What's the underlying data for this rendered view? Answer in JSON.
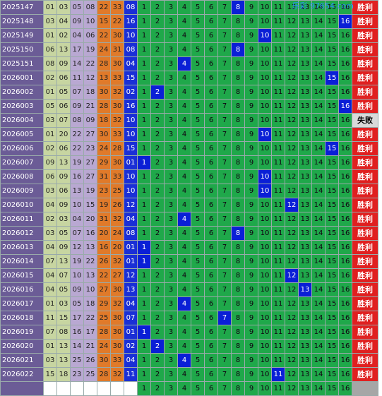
{
  "watermark": "乐彩 97654.com",
  "rows": [
    {
      "period": "2025147",
      "nums": [
        "01",
        "03",
        "05",
        "08",
        "22",
        "33"
      ],
      "blue": "08",
      "hit": 8,
      "res": "胜利"
    },
    {
      "period": "2025148",
      "nums": [
        "03",
        "04",
        "09",
        "10",
        "15",
        "22"
      ],
      "blue": "16",
      "hit": 16,
      "res": "胜利"
    },
    {
      "period": "2025149",
      "nums": [
        "01",
        "02",
        "04",
        "06",
        "22",
        "30"
      ],
      "blue": "10",
      "hit": 10,
      "res": "胜利"
    },
    {
      "period": "2025150",
      "nums": [
        "06",
        "13",
        "17",
        "19",
        "24",
        "31"
      ],
      "blue": "08",
      "hit": 8,
      "res": "胜利"
    },
    {
      "period": "2025151",
      "nums": [
        "08",
        "09",
        "14",
        "22",
        "28",
        "30"
      ],
      "blue": "04",
      "hit": 4,
      "res": "胜利"
    },
    {
      "period": "2026001",
      "nums": [
        "02",
        "06",
        "11",
        "12",
        "13",
        "33"
      ],
      "blue": "15",
      "hit": 15,
      "res": "胜利"
    },
    {
      "period": "2026002",
      "nums": [
        "01",
        "05",
        "07",
        "18",
        "30",
        "32"
      ],
      "blue": "02",
      "hit": 2,
      "res": "胜利"
    },
    {
      "period": "2026003",
      "nums": [
        "05",
        "06",
        "09",
        "21",
        "28",
        "30"
      ],
      "blue": "16",
      "hit": 16,
      "res": "胜利"
    },
    {
      "period": "2026004",
      "nums": [
        "03",
        "07",
        "08",
        "09",
        "18",
        "32"
      ],
      "blue": "10",
      "hit": null,
      "res": "失败"
    },
    {
      "period": "2026005",
      "nums": [
        "01",
        "20",
        "22",
        "27",
        "30",
        "33"
      ],
      "blue": "10",
      "hit": 10,
      "res": "胜利"
    },
    {
      "period": "2026006",
      "nums": [
        "02",
        "06",
        "22",
        "23",
        "24",
        "28"
      ],
      "blue": "15",
      "hit": 15,
      "res": "胜利"
    },
    {
      "period": "2026007",
      "nums": [
        "09",
        "13",
        "19",
        "27",
        "29",
        "30"
      ],
      "blue": "01",
      "hit": 1,
      "res": "胜利"
    },
    {
      "period": "2026008",
      "nums": [
        "06",
        "09",
        "16",
        "27",
        "31",
        "33"
      ],
      "blue": "10",
      "hit": 10,
      "res": "胜利"
    },
    {
      "period": "2026009",
      "nums": [
        "03",
        "06",
        "13",
        "19",
        "23",
        "25"
      ],
      "blue": "10",
      "hit": 10,
      "res": "胜利"
    },
    {
      "period": "2026010",
      "nums": [
        "04",
        "09",
        "10",
        "15",
        "19",
        "26"
      ],
      "blue": "12",
      "hit": 12,
      "res": "胜利"
    },
    {
      "period": "2026011",
      "nums": [
        "02",
        "03",
        "04",
        "20",
        "31",
        "32"
      ],
      "blue": "04",
      "hit": 4,
      "res": "胜利"
    },
    {
      "period": "2026012",
      "nums": [
        "03",
        "05",
        "07",
        "16",
        "20",
        "24"
      ],
      "blue": "08",
      "hit": 8,
      "res": "胜利"
    },
    {
      "period": "2026013",
      "nums": [
        "04",
        "09",
        "12",
        "13",
        "16",
        "20"
      ],
      "blue": "01",
      "hit": 1,
      "res": "胜利"
    },
    {
      "period": "2026014",
      "nums": [
        "07",
        "13",
        "19",
        "22",
        "26",
        "32"
      ],
      "blue": "01",
      "hit": 1,
      "res": "胜利"
    },
    {
      "period": "2026015",
      "nums": [
        "04",
        "07",
        "10",
        "13",
        "22",
        "27"
      ],
      "blue": "12",
      "hit": 12,
      "res": "胜利"
    },
    {
      "period": "2026016",
      "nums": [
        "04",
        "05",
        "09",
        "10",
        "27",
        "30"
      ],
      "blue": "13",
      "hit": 13,
      "res": "胜利"
    },
    {
      "period": "2026017",
      "nums": [
        "01",
        "03",
        "05",
        "18",
        "29",
        "32"
      ],
      "blue": "04",
      "hit": 4,
      "res": "胜利"
    },
    {
      "period": "2026018",
      "nums": [
        "11",
        "15",
        "17",
        "22",
        "25",
        "30"
      ],
      "blue": "07",
      "hit": 7,
      "res": "胜利"
    },
    {
      "period": "2026019",
      "nums": [
        "07",
        "08",
        "16",
        "17",
        "28",
        "30"
      ],
      "blue": "01",
      "hit": 1,
      "res": "胜利"
    },
    {
      "period": "2026020",
      "nums": [
        "01",
        "13",
        "14",
        "21",
        "24",
        "30"
      ],
      "blue": "02",
      "hit": 2,
      "res": "胜利"
    },
    {
      "period": "2026021",
      "nums": [
        "03",
        "13",
        "25",
        "26",
        "30",
        "33"
      ],
      "blue": "04",
      "hit": 4,
      "res": "胜利"
    },
    {
      "period": "2026022",
      "nums": [
        "15",
        "18",
        "23",
        "25",
        "28",
        "32"
      ],
      "blue": "11",
      "hit": 11,
      "res": "胜利"
    },
    {
      "period": "",
      "nums": [
        "",
        "",
        "",
        "",
        "",
        ""
      ],
      "blue": "",
      "hit": null,
      "res": ""
    }
  ]
}
